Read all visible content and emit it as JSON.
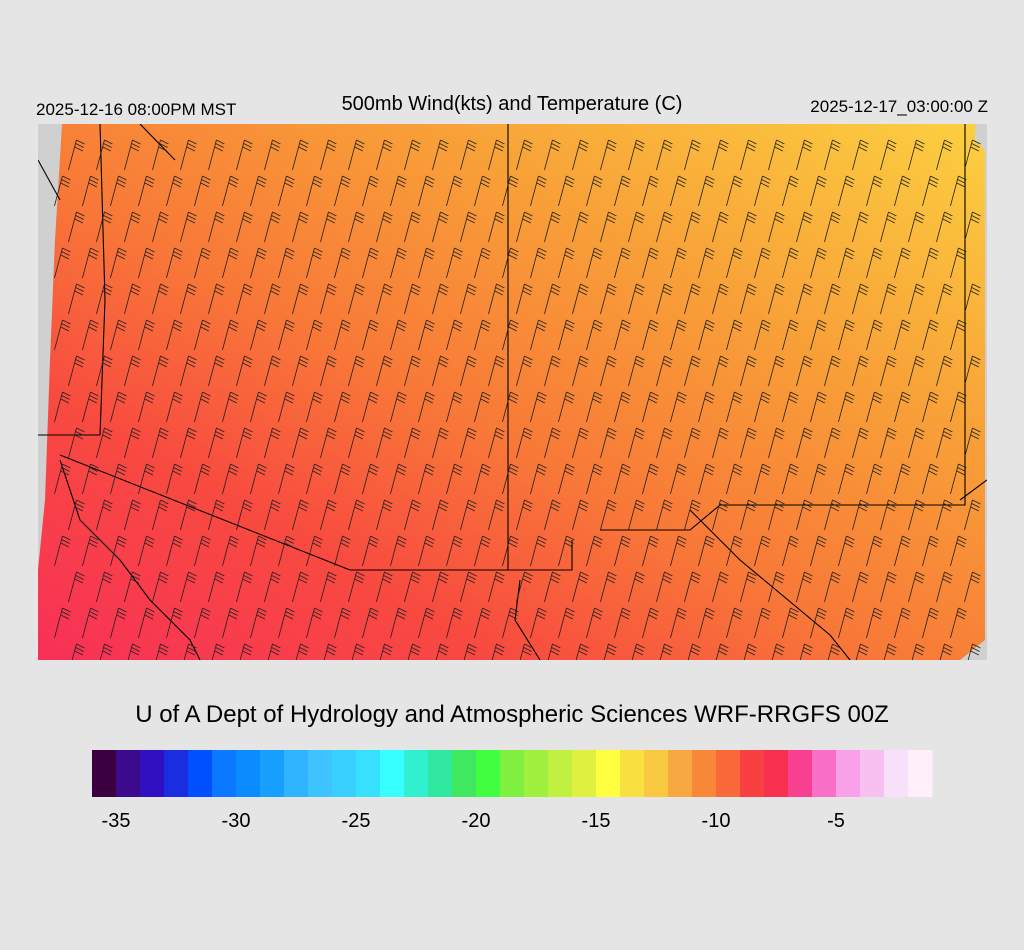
{
  "header": {
    "title": "500mb Wind(kts) and Temperature (C)",
    "left_time": "2025-12-16 08:00PM MST",
    "right_time": "2025-12-17_03:00:00 Z"
  },
  "credit": "U of A Dept of Hydrology and Atmospheric Sciences WRF-RRGFS 00Z",
  "colorbar": {
    "range": [
      -36,
      -1
    ],
    "ticks": [
      -35,
      -30,
      -25,
      -20,
      -15,
      -10,
      -5
    ],
    "colors": [
      "#3a0040",
      "#3c0a8c",
      "#3010c0",
      "#1a2ee0",
      "#0050ff",
      "#0a78ff",
      "#0a8cff",
      "#18a0ff",
      "#30b4ff",
      "#40c4ff",
      "#38d0ff",
      "#38e0ff",
      "#38ffff",
      "#30f0d0",
      "#30e8a0",
      "#40e860",
      "#40ff40",
      "#80f040",
      "#a0f040",
      "#c0f040",
      "#e0f040",
      "#ffff40",
      "#f8e040",
      "#f8c840",
      "#f8a840",
      "#f88838",
      "#f86838",
      "#f84040",
      "#f83050",
      "#f84090",
      "#f870c8",
      "#f8a0e8",
      "#f8c0f0",
      "#f8e0f8",
      "#fff0fc"
    ]
  }
}
